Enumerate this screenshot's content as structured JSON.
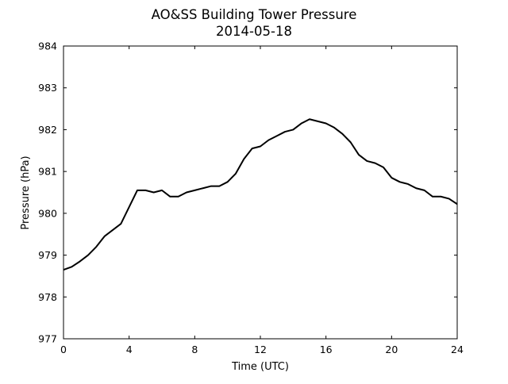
{
  "chart_data": {
    "type": "line",
    "title": "AO&SS Building Tower Pressure",
    "subtitle": "2014-05-18",
    "xlabel": "Time (UTC)",
    "ylabel": "Pressure (hPa)",
    "xlim": [
      0,
      24
    ],
    "ylim": [
      977,
      984
    ],
    "xticks": [
      0,
      4,
      8,
      12,
      16,
      20,
      24
    ],
    "yticks": [
      977,
      978,
      979,
      980,
      981,
      982,
      983,
      984
    ],
    "grid": false,
    "legend": "none",
    "series": [
      {
        "color": "#000000",
        "x": [
          0.0,
          0.5,
          1.0,
          1.5,
          2.0,
          2.5,
          3.0,
          3.5,
          4.0,
          4.5,
          5.0,
          5.5,
          6.0,
          6.5,
          7.0,
          7.5,
          8.0,
          8.5,
          9.0,
          9.5,
          10.0,
          10.5,
          11.0,
          11.5,
          12.0,
          12.5,
          13.0,
          13.5,
          14.0,
          14.5,
          15.0,
          15.5,
          16.0,
          16.5,
          17.0,
          17.5,
          18.0,
          18.5,
          19.0,
          19.5,
          20.0,
          20.5,
          21.0,
          21.5,
          22.0,
          22.5,
          23.0,
          23.5,
          24.0
        ],
        "y": [
          978.65,
          978.72,
          978.85,
          979.0,
          979.2,
          979.45,
          979.6,
          979.75,
          980.15,
          980.55,
          980.55,
          980.5,
          980.55,
          980.4,
          980.4,
          980.5,
          980.55,
          980.6,
          980.65,
          980.65,
          980.75,
          980.95,
          981.3,
          981.55,
          981.6,
          981.75,
          981.85,
          981.95,
          982.0,
          982.15,
          982.25,
          982.2,
          982.15,
          982.05,
          981.9,
          981.7,
          981.4,
          981.25,
          981.2,
          981.1,
          980.85,
          980.75,
          980.7,
          980.6,
          980.55,
          980.4,
          980.4,
          980.35,
          980.22
        ]
      }
    ]
  }
}
